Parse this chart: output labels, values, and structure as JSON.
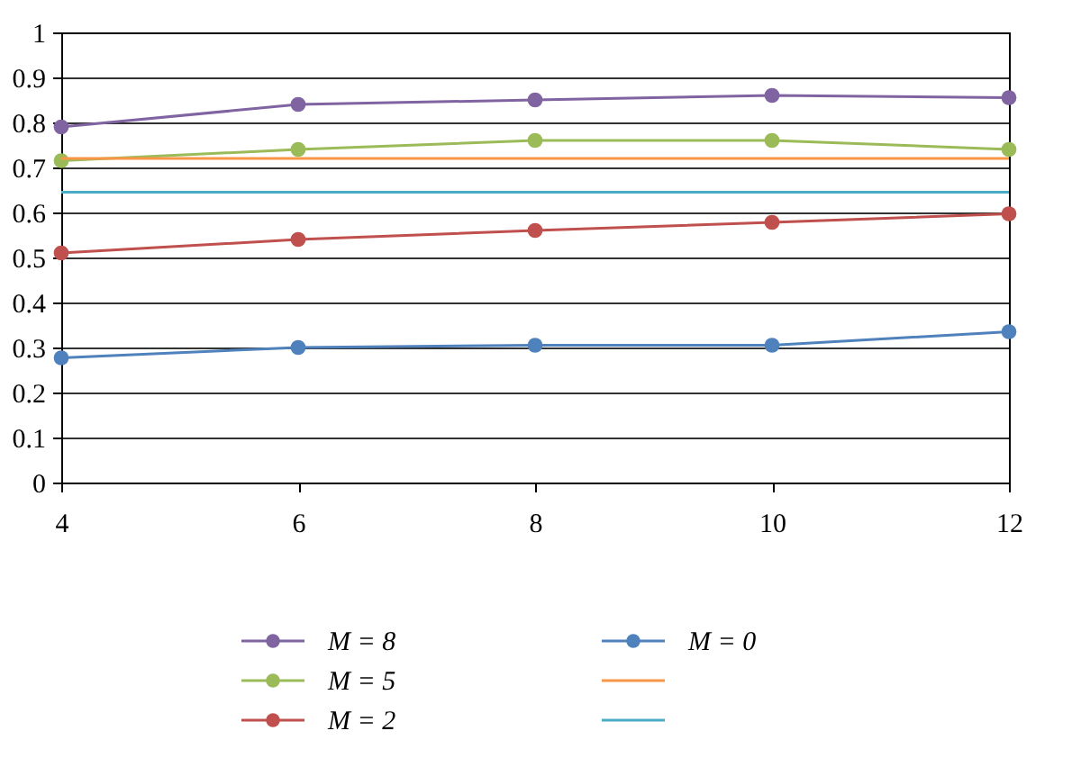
{
  "chart_data": {
    "type": "line",
    "x": [
      4,
      6,
      8,
      10,
      12
    ],
    "series": [
      {
        "name": "M = 8",
        "color": "#8064a2",
        "marker": "circle",
        "values": [
          0.79,
          0.84,
          0.85,
          0.86,
          0.855
        ]
      },
      {
        "name": "M = 5",
        "color": "#9bbb59",
        "marker": "circle",
        "values": [
          0.715,
          0.74,
          0.76,
          0.76,
          0.74
        ]
      },
      {
        "name": "M = 2",
        "color": "#c0504d",
        "marker": "circle",
        "values": [
          0.51,
          0.54,
          0.56,
          0.578,
          0.597
        ]
      },
      {
        "name": "M = 0",
        "color": "#4f81bd",
        "marker": "circle",
        "values": [
          0.277,
          0.3,
          0.305,
          0.305,
          0.335
        ]
      },
      {
        "color": "#f79646",
        "marker": "none",
        "values": [
          0.72,
          0.72,
          0.72,
          0.72,
          0.72
        ]
      },
      {
        "color": "#4bacc6",
        "marker": "none",
        "values": [
          0.645,
          0.645,
          0.645,
          0.645,
          0.645
        ]
      }
    ],
    "xlim": [
      4,
      12
    ],
    "xticks": [
      4,
      6,
      8,
      10,
      12
    ],
    "ylim": [
      0,
      1
    ],
    "yticks": [
      0,
      0.1,
      0.2,
      0.3,
      0.4,
      0.5,
      0.6,
      0.7,
      0.8,
      0.9,
      1
    ],
    "grid": "y",
    "legend": "bottom",
    "line_style": "solid"
  }
}
